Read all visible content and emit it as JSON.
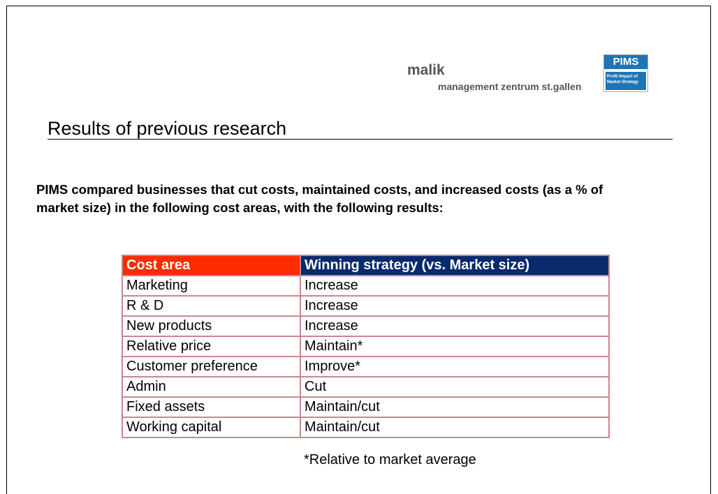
{
  "logo": {
    "brand": "malik",
    "subtitle": "management zentrum st.gallen",
    "pims": "PIMS",
    "pims_tagline": [
      "Profit Impact of",
      "Market Strategy"
    ]
  },
  "header": {
    "title": "Results of previous research"
  },
  "intro": "PIMS compared businesses that cut costs, maintained costs, and increased costs (as a % of market size) in the following cost areas, with the following results:",
  "table": {
    "headers": [
      "Cost area",
      "Winning strategy (vs. Market size)"
    ],
    "rows": [
      [
        "Marketing",
        "Increase"
      ],
      [
        "R & D",
        "Increase"
      ],
      [
        "New products",
        "Increase"
      ],
      [
        "Relative price",
        "Maintain*"
      ],
      [
        "Customer preference",
        "Improve*"
      ],
      [
        "Admin",
        "Cut"
      ],
      [
        "Fixed assets",
        "Maintain/cut"
      ],
      [
        "Working capital",
        "Maintain/cut"
      ]
    ]
  },
  "footnote": "*Relative to market average"
}
